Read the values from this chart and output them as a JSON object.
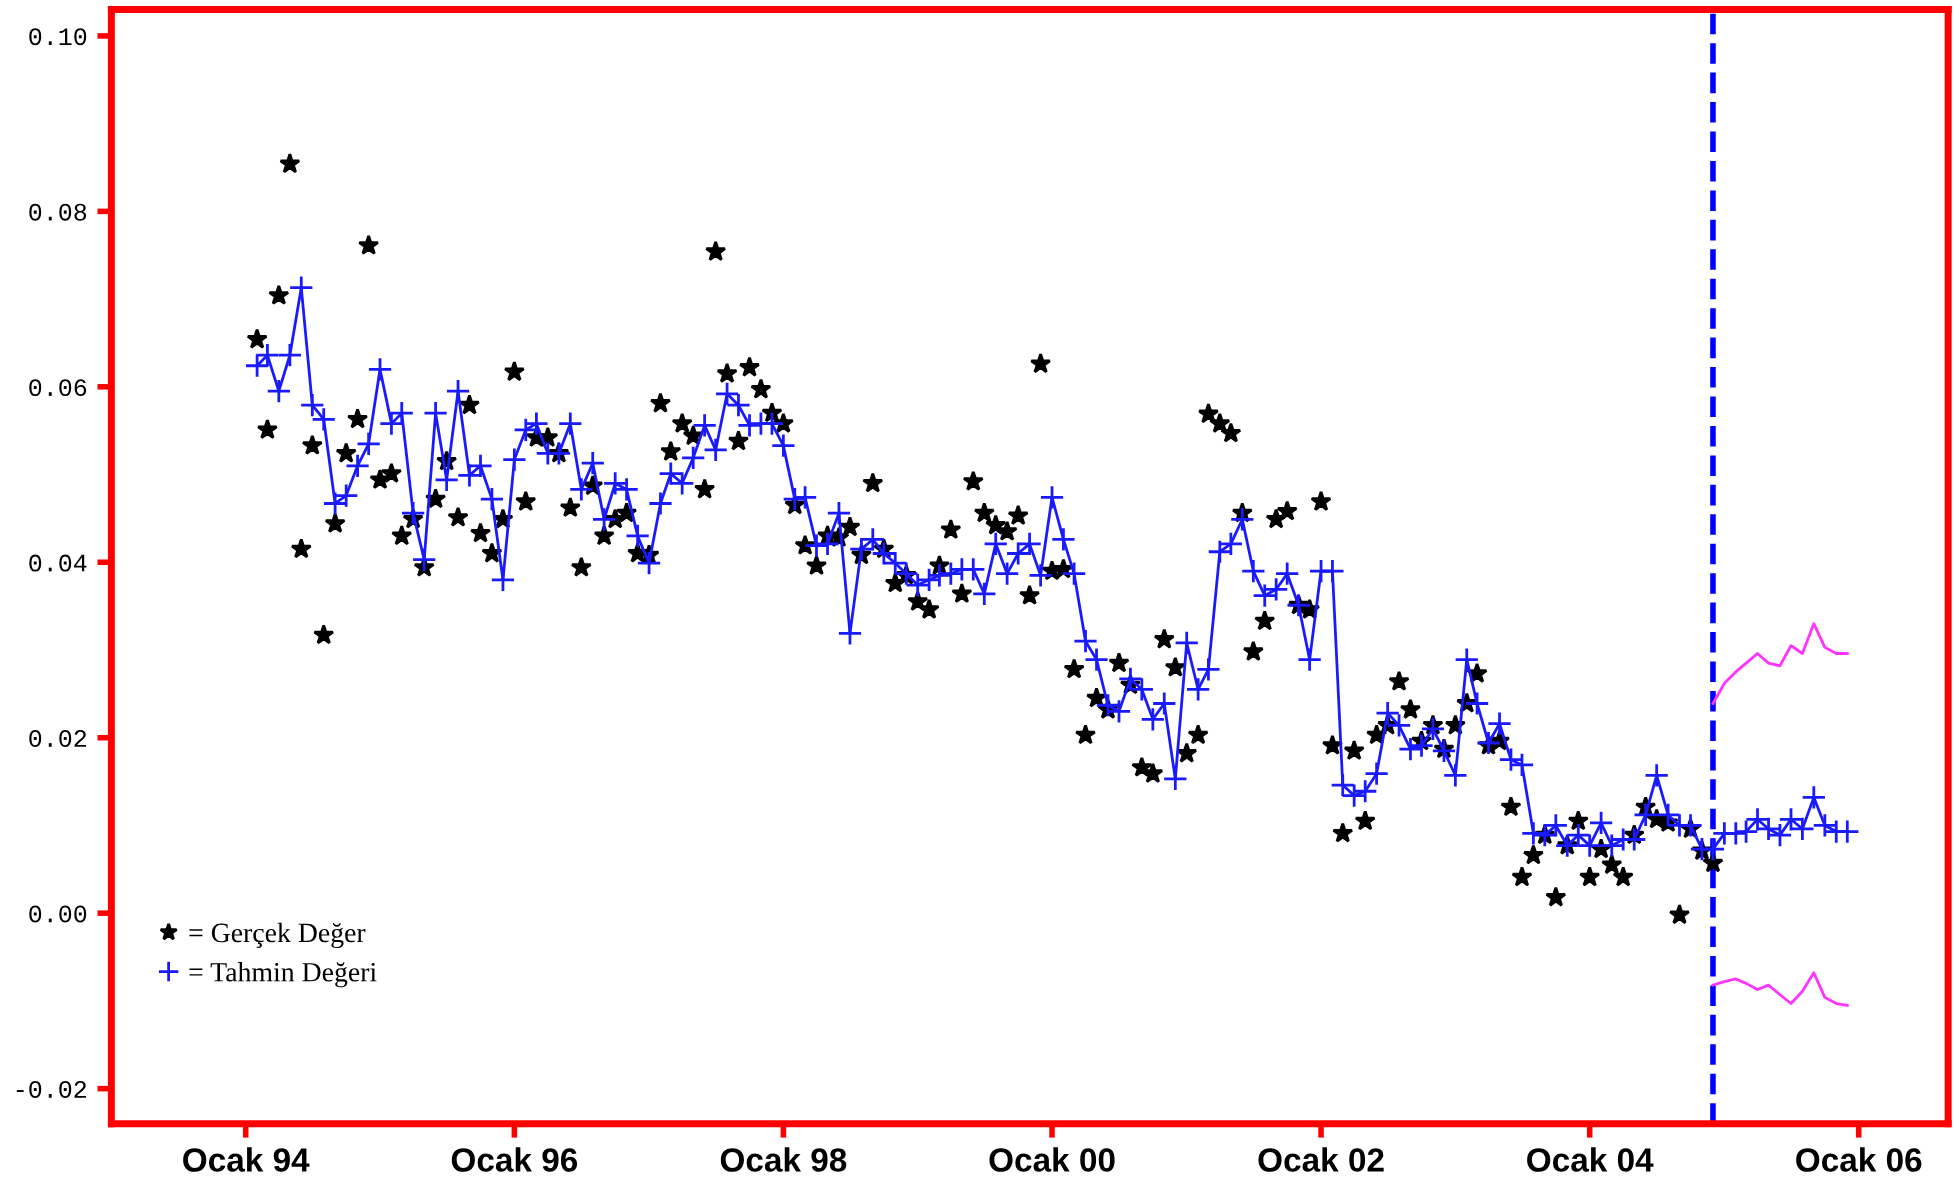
{
  "chart_data": {
    "type": "line",
    "x": [
      "1994-02",
      "1994-03",
      "1994-04",
      "1994-05",
      "1994-06",
      "1994-07",
      "1994-08",
      "1994-09",
      "1994-10",
      "1994-11",
      "1994-12",
      "1995-01",
      "1995-02",
      "1995-03",
      "1995-04",
      "1995-05",
      "1995-06",
      "1995-07",
      "1995-08",
      "1995-09",
      "1995-10",
      "1995-11",
      "1995-12",
      "1996-01",
      "1996-02",
      "1996-03",
      "1996-04",
      "1996-05",
      "1996-06",
      "1996-07",
      "1996-08",
      "1996-09",
      "1996-10",
      "1996-11",
      "1996-12",
      "1997-01",
      "1997-02",
      "1997-03",
      "1997-04",
      "1997-05",
      "1997-06",
      "1997-07",
      "1997-08",
      "1997-09",
      "1997-10",
      "1997-11",
      "1997-12",
      "1998-01",
      "1998-02",
      "1998-03",
      "1998-04",
      "1998-05",
      "1998-06",
      "1998-07",
      "1998-08",
      "1998-09",
      "1998-10",
      "1998-11",
      "1998-12",
      "1999-01",
      "1999-02",
      "1999-03",
      "1999-04",
      "1999-05",
      "1999-06",
      "1999-07",
      "1999-08",
      "1999-09",
      "1999-10",
      "1999-11",
      "1999-12",
      "2000-01",
      "2000-02",
      "2000-03",
      "2000-04",
      "2000-05",
      "2000-06",
      "2000-07",
      "2000-08",
      "2000-09",
      "2000-10",
      "2000-11",
      "2000-12",
      "2001-01",
      "2001-02",
      "2001-03",
      "2001-04",
      "2001-05",
      "2001-06",
      "2001-07",
      "2001-08",
      "2001-09",
      "2001-10",
      "2001-11",
      "2001-12",
      "2002-01",
      "2002-02",
      "2002-03",
      "2002-04",
      "2002-05",
      "2002-06",
      "2002-07",
      "2002-08",
      "2002-09",
      "2002-10",
      "2002-11",
      "2002-12",
      "2003-01",
      "2003-02",
      "2003-03",
      "2003-04",
      "2003-05",
      "2003-06",
      "2003-07",
      "2003-08",
      "2003-09",
      "2003-10",
      "2003-11",
      "2003-12",
      "2004-01",
      "2004-02",
      "2004-03",
      "2004-04",
      "2004-05",
      "2004-06",
      "2004-07",
      "2004-08",
      "2004-09",
      "2004-10",
      "2004-11",
      "2004-12",
      "2005-01",
      "2005-02",
      "2005-03",
      "2005-04",
      "2005-05",
      "2005-06",
      "2005-07",
      "2005-08",
      "2005-09",
      "2005-10",
      "2005-11",
      "2005-12"
    ],
    "series": [
      {
        "name": "= Gerçek Değer",
        "type": "scatter",
        "marker": "star",
        "color": "#000000",
        "values": [
          0.0654,
          0.0551,
          0.0704,
          0.0854,
          0.0415,
          0.0533,
          0.0317,
          0.0444,
          0.0524,
          0.0563,
          0.0761,
          0.0494,
          0.0501,
          0.043,
          0.0449,
          0.0394,
          0.0472,
          0.0515,
          0.0451,
          0.0579,
          0.0433,
          0.041,
          0.0449,
          0.0617,
          0.0469,
          0.0542,
          0.0542,
          0.0524,
          0.0462,
          0.0394,
          0.0487,
          0.043,
          0.0449,
          0.0456,
          0.041,
          0.0408,
          0.0581,
          0.0526,
          0.0558,
          0.0544,
          0.0483,
          0.0754,
          0.0615,
          0.0538,
          0.0622,
          0.0597,
          0.057,
          0.0558,
          0.0465,
          0.0419,
          0.0396,
          0.043,
          0.0428,
          0.044,
          0.0408,
          0.049,
          0.0415,
          0.0376,
          0.0385,
          0.0355,
          0.0346,
          0.0396,
          0.0437,
          0.0364,
          0.0492,
          0.0456,
          0.0442,
          0.0435,
          0.0453,
          0.0362,
          0.0626,
          0.039,
          0.0392,
          0.0278,
          0.0203,
          0.0245,
          0.0232,
          0.0285,
          0.026,
          0.0166,
          0.0159,
          0.0312,
          0.028,
          0.0182,
          0.0203,
          0.0569,
          0.0558,
          0.0547,
          0.0456,
          0.0298,
          0.0333,
          0.0449,
          0.0458,
          0.0351,
          0.0346,
          0.0469,
          0.0191,
          0.0091,
          0.0185,
          0.0105,
          0.0203,
          0.0214,
          0.0264,
          0.0232,
          0.0196,
          0.0214,
          0.0187,
          0.0214,
          0.0239,
          0.0273,
          0.0191,
          0.0196,
          0.0121,
          0.0041,
          0.0066,
          0.0089,
          0.0018,
          0.0077,
          0.0105,
          0.0041,
          0.0073,
          0.0055,
          0.0041,
          0.0089,
          0.0121,
          0.0107,
          0.0103,
          -0.0002,
          0.0096,
          0.0071,
          0.0057,
          null,
          null,
          null,
          null,
          null,
          null,
          null,
          null,
          null,
          null,
          null,
          null
        ]
      },
      {
        "name": "= Tahmin Değeri",
        "marker": "cross",
        "line_style": "solid",
        "color": "#1a1aff",
        "values": [
          0.0624,
          0.0636,
          0.0595,
          0.0636,
          0.0713,
          0.0579,
          0.0563,
          0.0467,
          0.0476,
          0.051,
          0.0535,
          0.062,
          0.0558,
          0.057,
          0.0456,
          0.0403,
          0.057,
          0.0494,
          0.0595,
          0.0499,
          0.051,
          0.0472,
          0.038,
          0.0517,
          0.0551,
          0.0558,
          0.0524,
          0.0524,
          0.0558,
          0.0483,
          0.0513,
          0.0449,
          0.049,
          0.0483,
          0.043,
          0.0399,
          0.0467,
          0.0501,
          0.049,
          0.0519,
          0.0556,
          0.0528,
          0.0592,
          0.0579,
          0.0556,
          0.0558,
          0.0558,
          0.0533,
          0.0472,
          0.0474,
          0.0419,
          0.0421,
          0.0456,
          0.0319,
          0.0415,
          0.0426,
          0.041,
          0.0399,
          0.0387,
          0.0374,
          0.038,
          0.0385,
          0.0387,
          0.0392,
          0.0392,
          0.0364,
          0.0421,
          0.0387,
          0.041,
          0.0421,
          0.0385,
          0.0474,
          0.0426,
          0.0387,
          0.031,
          0.0289,
          0.0237,
          0.023,
          0.0267,
          0.0255,
          0.0221,
          0.0239,
          0.0153,
          0.0308,
          0.0255,
          0.0278,
          0.0412,
          0.0421,
          0.0449,
          0.039,
          0.0362,
          0.0369,
          0.0387,
          0.0351,
          0.0289,
          0.039,
          0.039,
          0.0146,
          0.0134,
          0.0139,
          0.0159,
          0.0228,
          0.0214,
          0.0187,
          0.0191,
          0.021,
          0.0185,
          0.0157,
          0.0289,
          0.0239,
          0.0194,
          0.0216,
          0.0175,
          0.0169,
          0.0091,
          0.0089,
          0.01,
          0.0077,
          0.0089,
          0.0077,
          0.0103,
          0.0077,
          0.0084,
          0.0084,
          0.0112,
          0.0157,
          0.0112,
          0.01,
          0.01,
          0.0073,
          0.0073,
          0.0091,
          0.0091,
          0.0093,
          0.0107,
          0.0096,
          0.0089,
          0.0107,
          0.0096,
          0.0132,
          0.01,
          0.0093,
          0.0093
        ]
      },
      {
        "marker": "none",
        "line_style": "solid",
        "color": "#ff33ff",
        "x": [
          "2004-12",
          "2005-01",
          "2005-02",
          "2005-03",
          "2005-04",
          "2005-05",
          "2005-06",
          "2005-07",
          "2005-08",
          "2005-09",
          "2005-10",
          "2005-11",
          "2005-12"
        ],
        "values": [
          0.0239,
          0.0262,
          0.0275,
          0.0285,
          0.0296,
          0.0285,
          0.0282,
          0.0305,
          0.0296,
          0.033,
          0.0303,
          0.0296,
          0.0296
        ]
      },
      {
        "marker": "none",
        "line_style": "solid",
        "color": "#ff33ff",
        "x": [
          "2004-12",
          "2005-01",
          "2005-02",
          "2005-03",
          "2005-04",
          "2005-05",
          "2005-06",
          "2005-07",
          "2005-08",
          "2005-09",
          "2005-10",
          "2005-11",
          "2005-12"
        ],
        "values": [
          -0.0082,
          -0.0078,
          -0.0075,
          -0.008,
          -0.0087,
          -0.0082,
          -0.0093,
          -0.0103,
          -0.0089,
          -0.0068,
          -0.0096,
          -0.0103,
          -0.0105
        ]
      }
    ],
    "xlim": [
      "1993-01",
      "2006-09"
    ],
    "xticks": [
      {
        "value": "1994-01",
        "label": "Ocak 94"
      },
      {
        "value": "1996-01",
        "label": "Ocak 96"
      },
      {
        "value": "1998-01",
        "label": "Ocak 98"
      },
      {
        "value": "2000-01",
        "label": "Ocak 00"
      },
      {
        "value": "2002-01",
        "label": "Ocak 02"
      },
      {
        "value": "2004-01",
        "label": "Ocak 04"
      },
      {
        "value": "2006-01",
        "label": "Ocak 06"
      }
    ],
    "ylim": [
      -0.024,
      0.103
    ],
    "yticks": [
      {
        "value": -0.02,
        "label": "-0.02"
      },
      {
        "value": 0.0,
        "label": "0.00"
      },
      {
        "value": 0.02,
        "label": "0.02"
      },
      {
        "value": 0.04,
        "label": "0.04"
      },
      {
        "value": 0.06,
        "label": "0.06"
      },
      {
        "value": 0.08,
        "label": "0.08"
      },
      {
        "value": 0.1,
        "label": "0.10"
      }
    ],
    "ref_lines": [
      {
        "axis": "x",
        "value": "2004-12",
        "color": "#0000ff",
        "line_style": "dashed"
      }
    ],
    "grid": false,
    "legend": "bottom left"
  }
}
